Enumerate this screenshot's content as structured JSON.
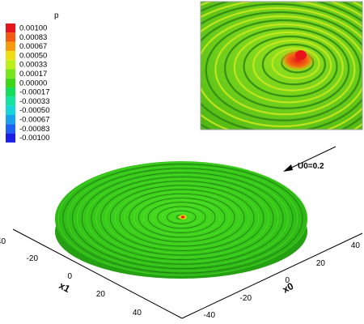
{
  "chart_data": {
    "type": "surface-3d",
    "variable": "p",
    "legend": {
      "title": "p",
      "levels": [
        0.001,
        0.00083,
        0.00067,
        0.0005,
        0.00033,
        0.00017,
        0.0,
        -0.00017,
        -0.00033,
        -0.0005,
        -0.00067,
        -0.00083,
        -0.001
      ],
      "labels": [
        "0.00100",
        "0.00083",
        "0.00067",
        "0.00050",
        "0.00033",
        "0.00017",
        "0.00000",
        "-0.00017",
        "-0.00033",
        "-0.00050",
        "-0.00067",
        "-0.00083",
        "-0.00100"
      ],
      "colors": [
        "#e8141b",
        "#f25a12",
        "#f79a0f",
        "#eede13",
        "#b9f01a",
        "#78e61c",
        "#3fd618",
        "#13dd5a",
        "#17e3a0",
        "#16d6d9",
        "#1aa2ef",
        "#1c63f4",
        "#1a20e8"
      ]
    },
    "flow": {
      "label": "U0=0.2"
    },
    "axes": {
      "x0": {
        "label": "x0",
        "ticks": [
          "-40",
          "-20",
          "0",
          "20",
          "40"
        ],
        "range": [
          -45,
          45
        ]
      },
      "x1": {
        "label": "x1",
        "ticks": [
          "-40",
          "-20",
          "0",
          "20",
          "40"
        ],
        "range": [
          -45,
          45
        ]
      }
    },
    "surface": {
      "shape": "disk",
      "radius": 40,
      "base_color": "#3cd41a",
      "ring_color": "#1f6e12"
    },
    "inset": {
      "description_color_base": "#7cd41c",
      "peak_color": "#e8141b"
    }
  }
}
